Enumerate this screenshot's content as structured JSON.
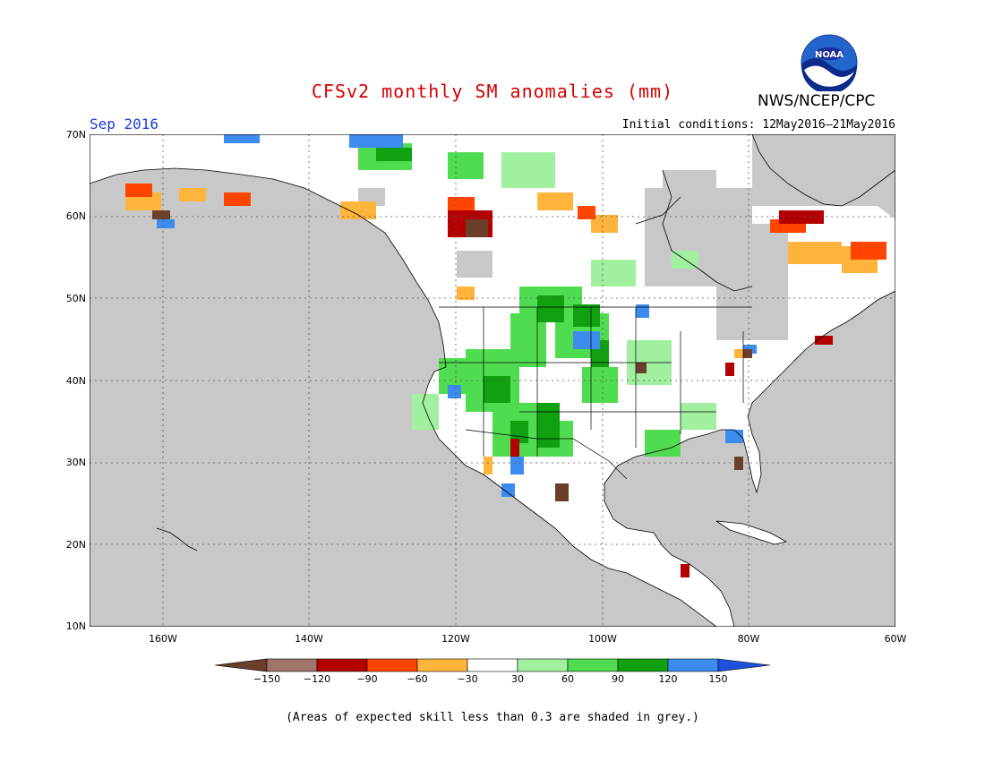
{
  "title": "CFSv2 monthly SM anomalies (mm)",
  "period": "Sep 2016",
  "initial_conditions": "Initial conditions: 12May2016–21May2016",
  "agency": "NWS/NCEP/CPC",
  "logo_text": "NOAA",
  "footnote": "(Areas of expected skill less than 0.3 are shaded in grey.)",
  "map": {
    "lon_range": [
      -170,
      -60
    ],
    "lat_range": [
      10,
      70
    ],
    "lat_labels": [
      "70N",
      "60N",
      "50N",
      "40N",
      "30N",
      "20N",
      "10N"
    ],
    "lon_labels": [
      "160W",
      "140W",
      "120W",
      "100W",
      "80W",
      "60W"
    ],
    "background_color": "#c8c8c8",
    "grid": "dotted"
  },
  "colorbar": {
    "labels": [
      "−150",
      "−120",
      "−90",
      "−60",
      "−30",
      "30",
      "60",
      "90",
      "120",
      "150"
    ],
    "colors": [
      "#6b3f2a",
      "#a07468",
      "#b30000",
      "#ff4500",
      "#ffb43c",
      "#ffffff",
      "#a0f0a0",
      "#50dc50",
      "#10a010",
      "#3c8cf0",
      "#1e50dc"
    ]
  }
}
